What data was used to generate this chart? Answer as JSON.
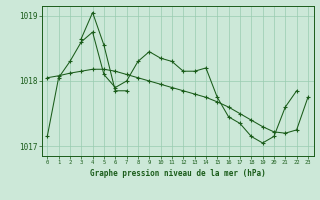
{
  "xlabel": "Graphe pression niveau de la mer (hPa)",
  "background_color": "#cce8d8",
  "grid_color": "#99ccb0",
  "line_color": "#1a5c1a",
  "hours": [
    0,
    1,
    2,
    3,
    4,
    5,
    6,
    7,
    8,
    9,
    10,
    11,
    12,
    13,
    14,
    15,
    16,
    17,
    18,
    19,
    20,
    21,
    22,
    23
  ],
  "series1": [
    1017.15,
    1018.05,
    1018.3,
    1018.6,
    1018.75,
    1018.1,
    1017.9,
    1018.0,
    1018.3,
    1018.45,
    1018.35,
    1018.3,
    1018.15,
    1018.15,
    1018.2,
    1017.75,
    1017.45,
    1017.35,
    1017.15,
    1017.05,
    1017.15,
    1017.6,
    1017.85,
    null
  ],
  "series2": [
    null,
    null,
    null,
    1018.65,
    1019.05,
    1018.55,
    1017.85,
    1017.85,
    null,
    null,
    null,
    null,
    null,
    null,
    null,
    null,
    null,
    null,
    null,
    null,
    null,
    null,
    null,
    null
  ],
  "series3": [
    1018.05,
    1018.08,
    1018.12,
    1018.15,
    1018.18,
    1018.18,
    1018.15,
    1018.1,
    1018.05,
    1018.0,
    1017.95,
    1017.9,
    1017.85,
    1017.8,
    1017.75,
    1017.68,
    1017.6,
    1017.5,
    1017.4,
    1017.3,
    1017.22,
    1017.2,
    1017.25,
    1017.75
  ],
  "ylim": [
    1016.85,
    1019.15
  ],
  "yticks": [
    1017,
    1018,
    1019
  ],
  "xticks": [
    0,
    1,
    2,
    3,
    4,
    5,
    6,
    7,
    8,
    9,
    10,
    11,
    12,
    13,
    14,
    15,
    16,
    17,
    18,
    19,
    20,
    21,
    22,
    23
  ]
}
